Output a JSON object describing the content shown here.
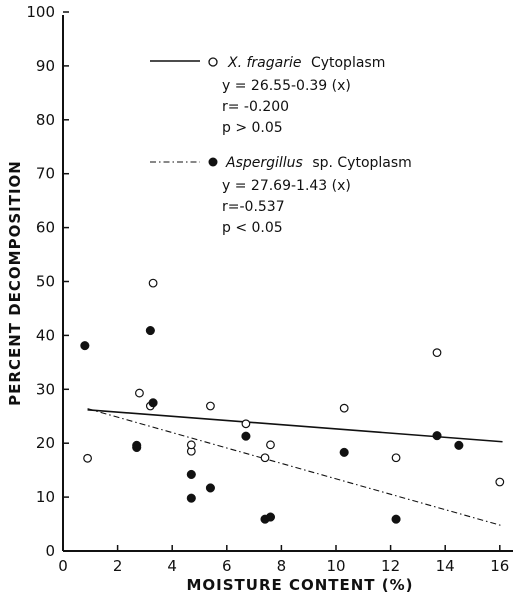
{
  "chart_data": {
    "type": "scatter",
    "xlabel": "MOISTURE CONTENT (%)",
    "ylabel": "PERCENT DECOMPOSITION",
    "xlim": [
      0,
      16.4
    ],
    "ylim": [
      0,
      100
    ],
    "x_ticks": [
      "0",
      "2",
      "4",
      "6",
      "8",
      "10",
      "12",
      "14",
      "16"
    ],
    "y_ticks": [
      "0",
      "10",
      "20",
      "30",
      "40",
      "50",
      "60",
      "70",
      "80",
      "90",
      "100"
    ],
    "grid": false,
    "legend_position": "top-center",
    "series": [
      {
        "name": "X. fragarie",
        "name_suffix": "Cytoplasm",
        "marker": "open-circle",
        "line_style": "solid",
        "equation": "y = 26.55-0.39 (x)",
        "r": "r= -0.200",
        "p": "p >  0.05",
        "fit": {
          "intercept": 26.55,
          "slope": -0.39,
          "x_range": [
            0.9,
            16.1
          ]
        },
        "points": [
          {
            "x": 0.9,
            "y": 17.2
          },
          {
            "x": 2.8,
            "y": 29.3
          },
          {
            "x": 3.2,
            "y": 26.9
          },
          {
            "x": 3.3,
            "y": 49.7
          },
          {
            "x": 4.7,
            "y": 18.5
          },
          {
            "x": 4.7,
            "y": 19.7
          },
          {
            "x": 5.4,
            "y": 26.9
          },
          {
            "x": 6.7,
            "y": 23.6
          },
          {
            "x": 7.4,
            "y": 17.3
          },
          {
            "x": 7.6,
            "y": 19.7
          },
          {
            "x": 10.3,
            "y": 26.5
          },
          {
            "x": 12.2,
            "y": 17.3
          },
          {
            "x": 13.7,
            "y": 36.8
          },
          {
            "x": 16.0,
            "y": 12.8
          }
        ]
      },
      {
        "name": "Aspergillus",
        "name_suffix": "sp. Cytoplasm",
        "marker": "filled-circle",
        "line_style": "dash-dot",
        "equation": "y = 27.69-1.43 (x)",
        "r": "r=-0.537",
        "p": "p <  0.05",
        "fit": {
          "intercept": 27.69,
          "slope": -1.43,
          "x_range": [
            0.9,
            16.1
          ]
        },
        "points": [
          {
            "x": 0.8,
            "y": 38.1
          },
          {
            "x": 2.7,
            "y": 19.2
          },
          {
            "x": 2.7,
            "y": 19.6
          },
          {
            "x": 3.2,
            "y": 40.9
          },
          {
            "x": 3.3,
            "y": 27.5
          },
          {
            "x": 4.7,
            "y": 14.2
          },
          {
            "x": 4.7,
            "y": 9.8
          },
          {
            "x": 5.4,
            "y": 11.7
          },
          {
            "x": 6.7,
            "y": 21.3
          },
          {
            "x": 7.4,
            "y": 5.9
          },
          {
            "x": 7.6,
            "y": 6.3
          },
          {
            "x": 10.3,
            "y": 18.3
          },
          {
            "x": 12.2,
            "y": 5.9
          },
          {
            "x": 13.7,
            "y": 21.4
          },
          {
            "x": 14.5,
            "y": 19.6
          }
        ]
      }
    ]
  }
}
